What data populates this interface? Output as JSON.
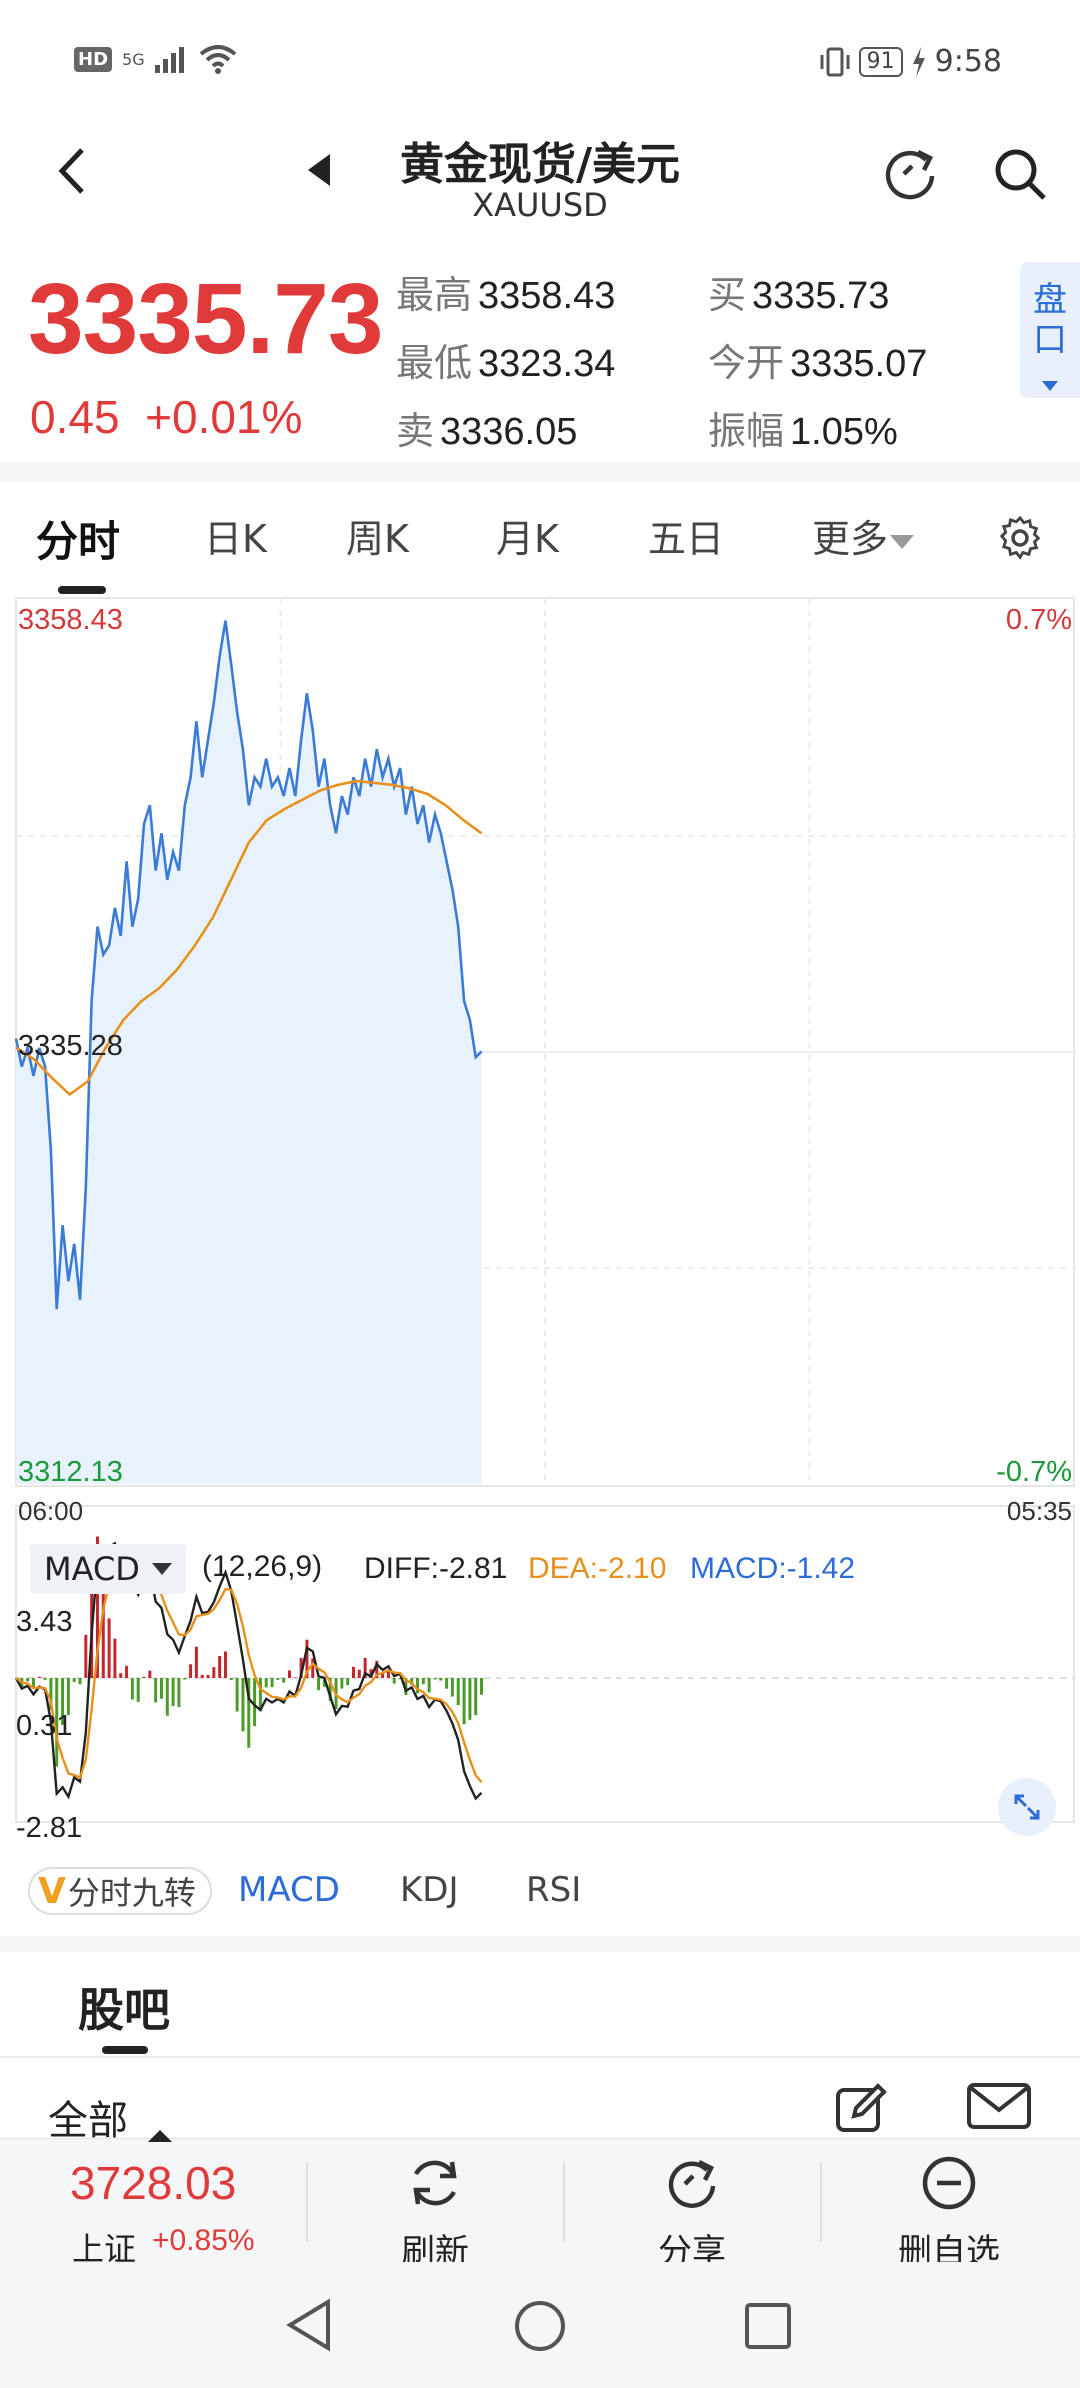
{
  "status": {
    "time": "9:58",
    "battery": "91",
    "hd": "HD",
    "network": "5G"
  },
  "header": {
    "title": "黄金现货/美元",
    "subtitle": "XAUUSD"
  },
  "quote": {
    "price": "3335.73",
    "change": "0.45",
    "change_pct": "+0.01%",
    "high_label": "最高",
    "high": "3358.43",
    "low_label": "最低",
    "low": "3323.34",
    "sell_label": "卖",
    "sell": "3336.05",
    "buy_label": "买",
    "buy": "3335.73",
    "open_label": "今开",
    "open": "3335.07",
    "amp_label": "振幅",
    "amp": "1.05%",
    "pankou": "盘口",
    "color_up": "#e03a3a"
  },
  "tabs": [
    "分时",
    "日K",
    "周K",
    "月K",
    "五日",
    "更多"
  ],
  "chart_data": [
    {
      "type": "area",
      "y_max_label": "3358.43",
      "y_mid_label": "3335.28",
      "y_min_label": "3312.13",
      "pct_max_label": "0.7%",
      "pct_min_label": "-0.7%",
      "start_time": "06:00",
      "end_time": "05:35",
      "ylim": [
        3312.13,
        3358.43
      ],
      "series": [
        {
          "values": [
            3336.0,
            3334.5,
            3335.5,
            3334.0,
            3335.5,
            3334.5,
            3330.0,
            3321.5,
            3326.0,
            3323.0,
            3325.0,
            3322.0,
            3328.0,
            3338.0,
            3342.0,
            3340.5,
            3341.0,
            3343.0,
            3341.5,
            3345.5,
            3342.0,
            3343.5,
            3347.5,
            3348.5,
            3345.0,
            3347.0,
            3344.5,
            3346.0,
            3345.0,
            3348.5,
            3350.0,
            3353.0,
            3350.0,
            3352.0,
            3354.0,
            3356.5,
            3358.4,
            3356.0,
            3353.5,
            3351.5,
            3348.5,
            3350.0,
            3349.5,
            3351.0,
            3349.5,
            3350.0,
            3349.0,
            3350.5,
            3349.0,
            3352.0,
            3354.5,
            3352.5,
            3349.5,
            3351.0,
            3348.5,
            3347.0,
            3349.0,
            3348.0,
            3350.0,
            3349.0,
            3351.0,
            3349.5,
            3351.5,
            3350.0,
            3351.0,
            3349.5,
            3350.5,
            3348.0,
            3349.5,
            3347.5,
            3348.5,
            3346.5,
            3348.0,
            3347.0,
            3345.5,
            3344.0,
            3342.0,
            3338.0,
            3337.0,
            3335.0,
            3335.3
          ]
        },
        {
          "values": [
            3335.5,
            3334.9,
            3333.9,
            3333.0,
            3333.7,
            3335.5,
            3337.0,
            3338.0,
            3338.7,
            3339.7,
            3341.0,
            3342.5,
            3344.5,
            3346.5,
            3347.7,
            3348.3,
            3348.8,
            3349.3,
            3349.6,
            3349.8,
            3349.7,
            3349.6,
            3349.4,
            3349.1,
            3348.5,
            3347.7,
            3347.0
          ]
        }
      ]
    },
    {
      "type": "bar",
      "indicator": "MACD",
      "params": "(12,26,9)",
      "diff": "DIFF:-2.81",
      "dea": "DEA:-2.10",
      "macd": "MACD:-1.42",
      "y_max_label": "3.43",
      "y_mid_label": "0.31",
      "y_min_label": "-2.81",
      "ylim": [
        -2.81,
        3.43
      ],
      "colors": {
        "diff": "#222222",
        "dea": "#e8901c",
        "macd_label": "#2c6cd6",
        "pos": "#c2272d",
        "neg": "#4c9a2a"
      }
    }
  ],
  "indicators": {
    "v_label": "分时九转",
    "tabs": [
      "MACD",
      "KDJ",
      "RSI"
    ]
  },
  "guba": {
    "title": "股吧",
    "all": "全部"
  },
  "bottom": {
    "index_value": "3728.03",
    "index_name": "上证",
    "index_change": "+0.85%",
    "refresh": "刷新",
    "share": "分享",
    "remove": "删自选"
  }
}
